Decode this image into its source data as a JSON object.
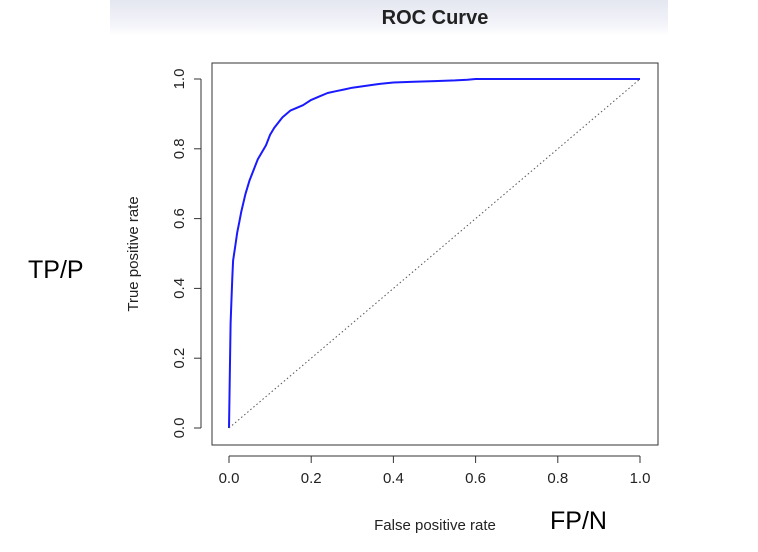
{
  "chart_data": {
    "type": "line",
    "title": "ROC Curve",
    "xlabel": "False positive rate",
    "ylabel": "True positive rate",
    "xlim": [
      0,
      1
    ],
    "ylim": [
      0,
      1
    ],
    "xticks": [
      "0.0",
      "0.2",
      "0.4",
      "0.6",
      "0.8",
      "1.0"
    ],
    "yticks": [
      "0.0",
      "0.2",
      "0.4",
      "0.6",
      "0.8",
      "1.0"
    ],
    "grid": false,
    "series": [
      {
        "color": "#1a1aff",
        "x": [
          0.0,
          0.002,
          0.004,
          0.006,
          0.008,
          0.01,
          0.015,
          0.02,
          0.025,
          0.03,
          0.04,
          0.05,
          0.06,
          0.07,
          0.08,
          0.09,
          0.1,
          0.11,
          0.12,
          0.13,
          0.14,
          0.15,
          0.16,
          0.17,
          0.18,
          0.2,
          0.22,
          0.24,
          0.26,
          0.28,
          0.3,
          0.33,
          0.36,
          0.4,
          0.45,
          0.5,
          0.55,
          0.58,
          0.6,
          0.7,
          0.8,
          0.9,
          1.0
        ],
        "y": [
          0.0,
          0.15,
          0.3,
          0.37,
          0.43,
          0.48,
          0.52,
          0.56,
          0.59,
          0.62,
          0.67,
          0.71,
          0.74,
          0.77,
          0.79,
          0.81,
          0.84,
          0.86,
          0.875,
          0.89,
          0.9,
          0.91,
          0.915,
          0.92,
          0.925,
          0.94,
          0.95,
          0.96,
          0.965,
          0.97,
          0.975,
          0.98,
          0.985,
          0.99,
          0.992,
          0.994,
          0.996,
          0.998,
          1.0,
          1.0,
          1.0,
          1.0,
          1.0
        ]
      },
      {
        "style": "dotted",
        "color": "#555555",
        "x": [
          0,
          1
        ],
        "y": [
          0,
          1
        ]
      }
    ]
  },
  "side_labels": {
    "left": "TP/P",
    "bottom": "FP/N"
  }
}
